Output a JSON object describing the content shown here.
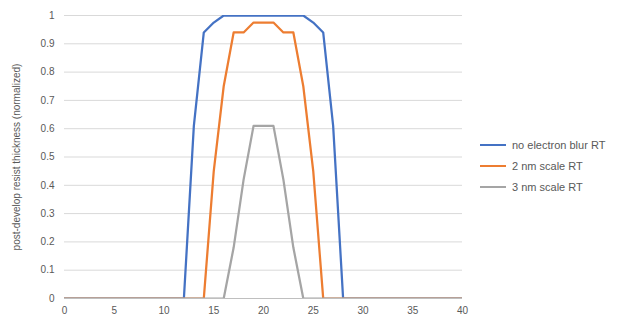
{
  "chart_data": {
    "type": "line",
    "y_label": "post-develop resist thickness (normalized)",
    "x": [
      0,
      1,
      2,
      3,
      4,
      5,
      6,
      7,
      8,
      9,
      10,
      11,
      12,
      13,
      14,
      15,
      16,
      17,
      18,
      19,
      20,
      21,
      22,
      23,
      24,
      25,
      26,
      27,
      28,
      29,
      30,
      31,
      32,
      33,
      34,
      35,
      36,
      37,
      38,
      39,
      40
    ],
    "series": [
      {
        "name": "no electron blur RT",
        "color": "#4472c4",
        "values": [
          0,
          0,
          0,
          0,
          0,
          0,
          0,
          0,
          0,
          0,
          0,
          0,
          0,
          0.61,
          0.94,
          0.975,
          1,
          1,
          1,
          1,
          1,
          1,
          1,
          1,
          1,
          0.975,
          0.94,
          0.61,
          0,
          0,
          0,
          0,
          0,
          0,
          0,
          0,
          0,
          0,
          0,
          0,
          0
        ]
      },
      {
        "name": "2 nm scale RT",
        "color": "#ed7d31",
        "values": [
          0,
          0,
          0,
          0,
          0,
          0,
          0,
          0,
          0,
          0,
          0,
          0,
          0,
          0,
          0,
          0.45,
          0.75,
          0.94,
          0.94,
          0.975,
          0.975,
          0.975,
          0.94,
          0.94,
          0.75,
          0.45,
          0,
          0,
          0,
          0,
          0,
          0,
          0,
          0,
          0,
          0,
          0,
          0,
          0,
          0,
          0
        ]
      },
      {
        "name": "3 nm scale RT",
        "color": "#a5a5a5",
        "values": [
          0,
          0,
          0,
          0,
          0,
          0,
          0,
          0,
          0,
          0,
          0,
          0,
          0,
          0,
          0,
          0,
          0,
          0.18,
          0.42,
          0.61,
          0.61,
          0.61,
          0.42,
          0.18,
          0,
          0,
          0,
          0,
          0,
          0,
          0,
          0,
          0,
          0,
          0,
          0,
          0,
          0,
          0,
          0,
          0
        ]
      }
    ],
    "xlim": [
      0,
      40
    ],
    "xticks": [
      0,
      5,
      10,
      15,
      20,
      25,
      30,
      35,
      40
    ],
    "ylim": [
      0,
      1
    ],
    "yticks": [
      0,
      0.1,
      0.2,
      0.3,
      0.4,
      0.5,
      0.6,
      0.7,
      0.8,
      0.9,
      1
    ],
    "grid": true,
    "legend": "right"
  }
}
